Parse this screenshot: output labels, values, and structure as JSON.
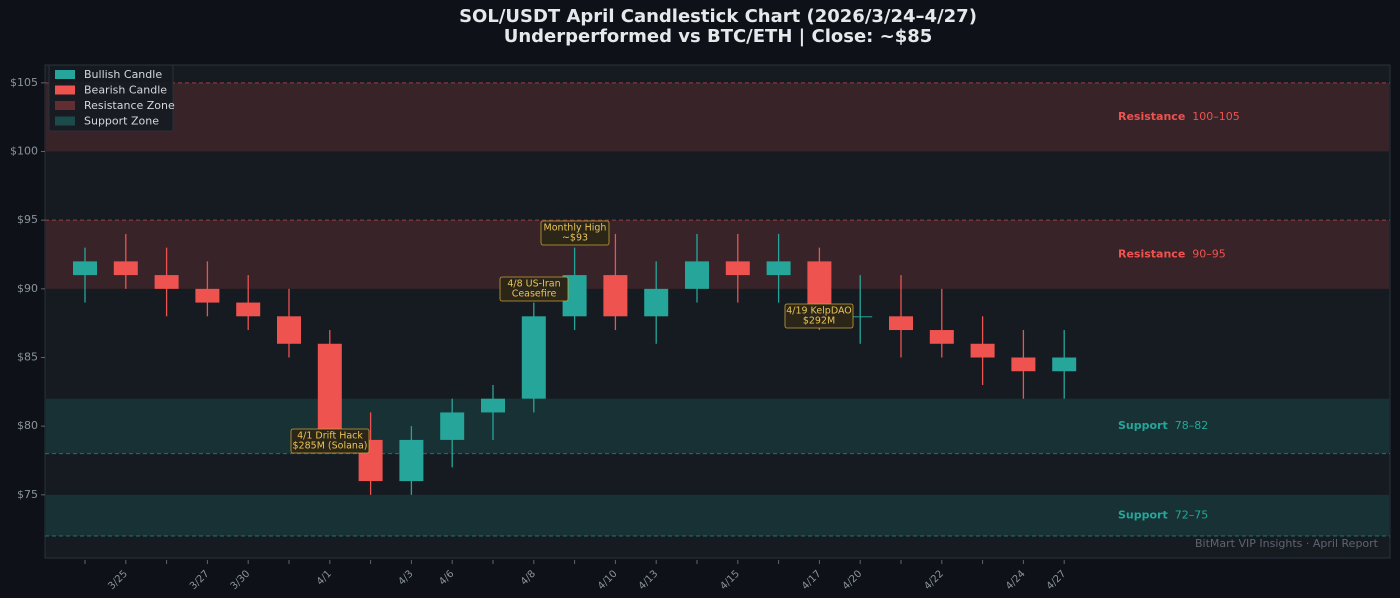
{
  "chart_data": {
    "type": "candlestick",
    "title": "SOL/USDT  April Candlestick Chart  (2026/3/24–4/27)",
    "subtitle": "Underperformed vs BTC/ETH  |  Close: ~$85",
    "categories": [
      null,
      "3/25",
      null,
      "3/27",
      "3/30",
      null,
      "4/1",
      null,
      "4/3",
      "4/6",
      null,
      "4/8",
      null,
      "4/10",
      "4/13",
      null,
      "4/15",
      null,
      "4/17",
      "4/20",
      null,
      "4/22",
      null,
      "4/24",
      "4/27"
    ],
    "open": [
      91,
      92,
      91,
      90,
      89,
      88,
      86,
      79,
      76,
      79,
      81,
      82,
      88,
      91,
      88,
      90,
      92,
      91,
      92,
      88,
      88,
      87,
      86,
      85,
      84
    ],
    "high": [
      93,
      94,
      93,
      92,
      91,
      90,
      87,
      81,
      80,
      82,
      83,
      89,
      93,
      94,
      92,
      94,
      94,
      94,
      93,
      91,
      91,
      90,
      88,
      87,
      87
    ],
    "low": [
      89,
      90,
      88,
      88,
      87,
      85,
      78,
      75,
      75,
      77,
      79,
      81,
      87,
      87,
      86,
      89,
      89,
      89,
      87,
      86,
      85,
      85,
      83,
      82,
      82
    ],
    "close": [
      92,
      91,
      90,
      89,
      88,
      86,
      79,
      76,
      79,
      81,
      82,
      88,
      91,
      88,
      90,
      92,
      91,
      92,
      88,
      88,
      87,
      86,
      85,
      84,
      85
    ],
    "bullish_color": "#26a69a",
    "bearish_color": "#ef5350",
    "ylim": [
      70.4,
      106.3
    ],
    "yticks": [
      {
        "value": 75,
        "label": "$75"
      },
      {
        "value": 80,
        "label": "$80"
      },
      {
        "value": 85,
        "label": "$85"
      },
      {
        "value": 90,
        "label": "$90"
      },
      {
        "value": 95,
        "label": "$95"
      },
      {
        "value": 100,
        "label": "$100"
      },
      {
        "value": 105,
        "label": "$105"
      }
    ],
    "zones": [
      {
        "label": "Resistance",
        "range_label": "100–105",
        "low": 100,
        "high": 105,
        "kind": "resistance"
      },
      {
        "label": "Resistance",
        "range_label": "90–95",
        "low": 90,
        "high": 95,
        "kind": "resistance"
      },
      {
        "label": "Support",
        "range_label": "78–82",
        "low": 78,
        "high": 82,
        "kind": "support"
      },
      {
        "label": "Support",
        "range_label": "72–75",
        "low": 72,
        "high": 75,
        "kind": "support"
      }
    ],
    "legend": [
      "Bullish Candle",
      "Bearish Candle",
      "Resistance Zone",
      "Support Zone"
    ],
    "annotations": [
      [
        "4/1 Drift Hack",
        "$285M (Solana)"
      ],
      [
        "4/8 US-Iran",
        "Ceasefire"
      ],
      [
        "Monthly High",
        "~$93"
      ],
      [
        "4/19 KelpDAO",
        "$292M"
      ]
    ],
    "watermark": "BitMart VIP Insights · April Report"
  }
}
